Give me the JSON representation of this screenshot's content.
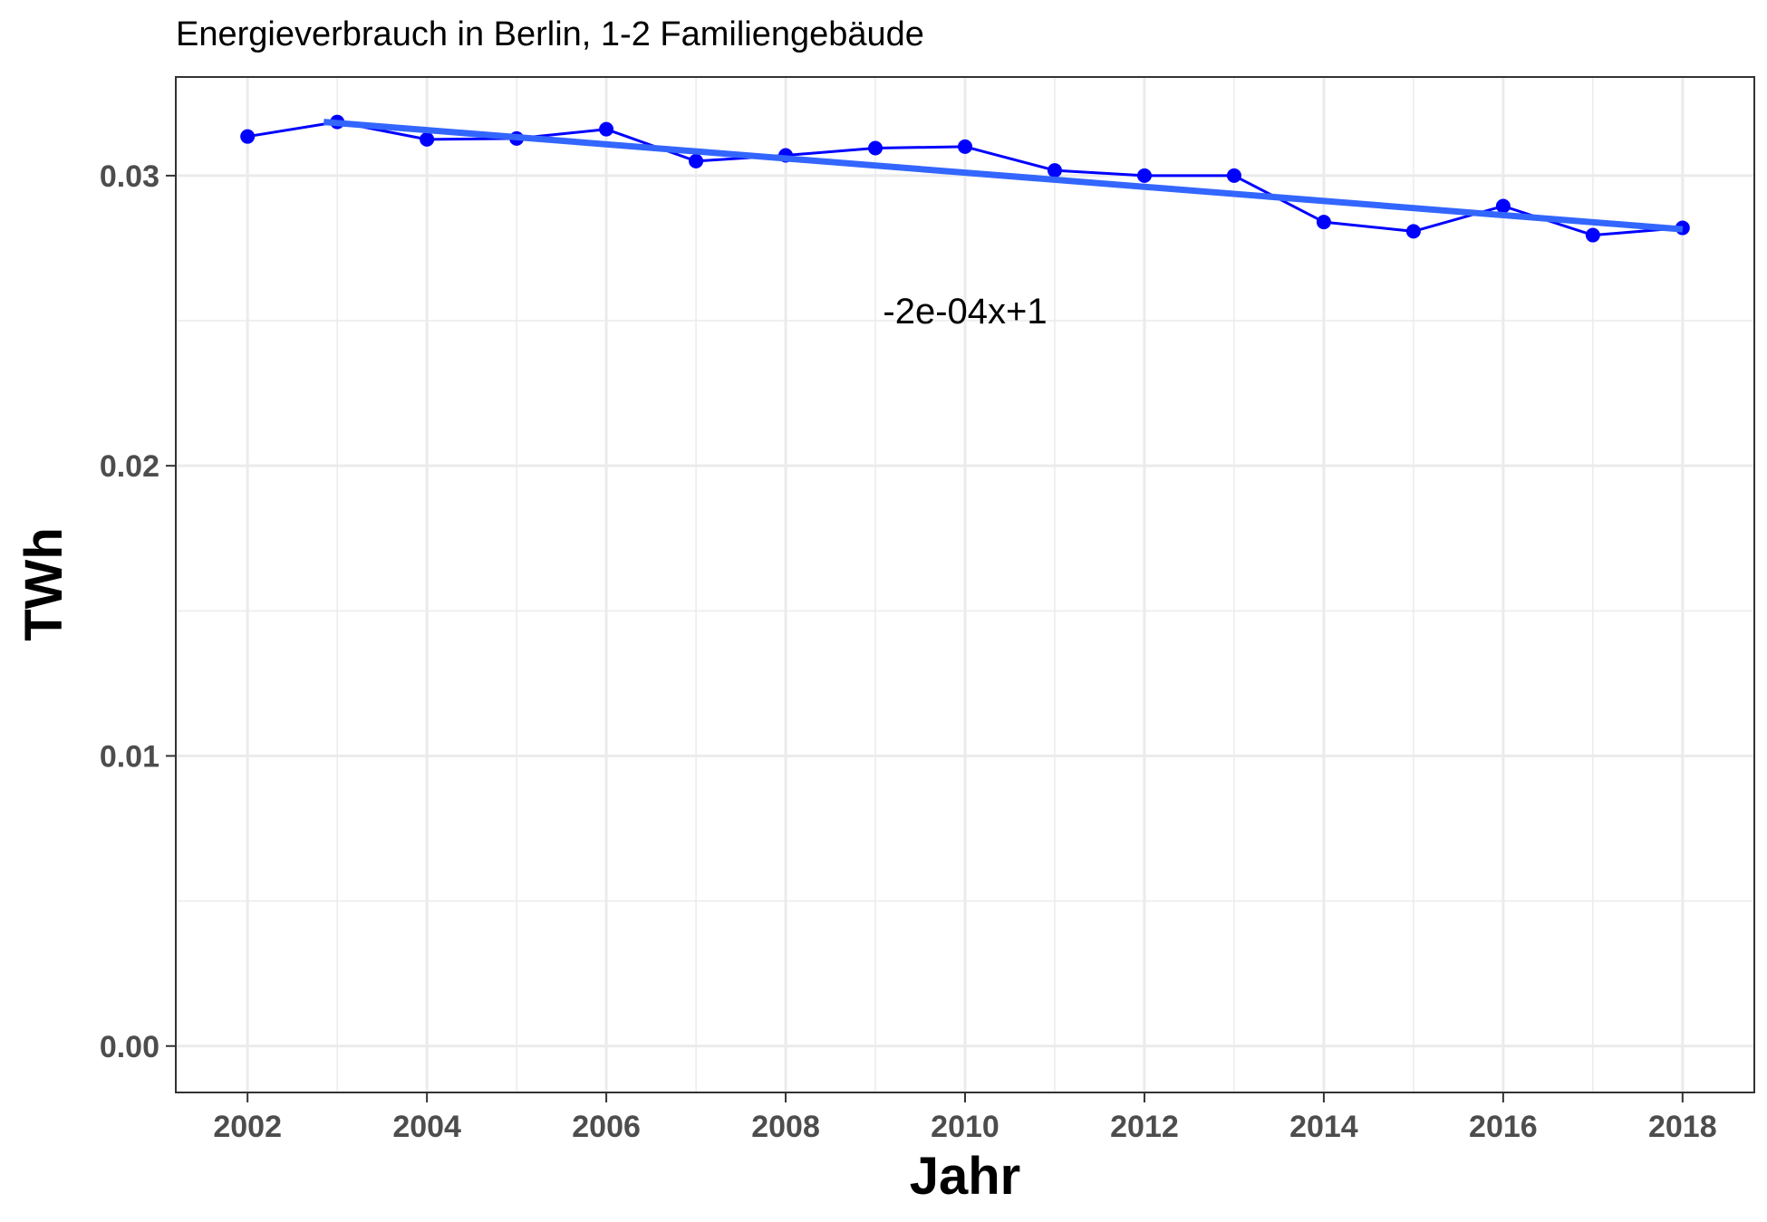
{
  "chart_data": {
    "type": "line",
    "title": "Energieverbrauch in Berlin, 1-2 Familiengebäude",
    "xlabel": "Jahr",
    "ylabel": "TWh",
    "xlim": [
      2001.2,
      2018.8
    ],
    "ylim": [
      -0.0016,
      0.0334
    ],
    "x_ticks": [
      2002,
      2004,
      2006,
      2008,
      2010,
      2012,
      2014,
      2016,
      2018
    ],
    "x_tick_labels": [
      "2002",
      "2004",
      "2006",
      "2008",
      "2010",
      "2012",
      "2014",
      "2016",
      "2018"
    ],
    "y_ticks": [
      0.0,
      0.01,
      0.02,
      0.03
    ],
    "y_tick_labels": [
      "0.00",
      "0.01",
      "0.02",
      "0.03"
    ],
    "grid": true,
    "series": [
      {
        "color": "#0000ff",
        "x": [
          2002,
          2003,
          2004,
          2005,
          2006,
          2007,
          2008,
          2009,
          2010,
          2011,
          2012,
          2013,
          2014,
          2015,
          2016,
          2017,
          2018
        ],
        "values": [
          0.03135,
          0.03185,
          0.03125,
          0.03128,
          0.0316,
          0.0305,
          0.0307,
          0.03095,
          0.031,
          0.03018,
          0.03,
          0.03,
          0.0284,
          0.02808,
          0.02895,
          0.02795,
          0.0282
        ]
      }
    ],
    "trend_line": {
      "color": "#3366ff",
      "x": [
        2002.85,
        2018
      ],
      "values": [
        0.03185,
        0.02815
      ]
    },
    "annotation": {
      "text": "-2e-04x+1",
      "x": 2010,
      "y": 0.0249
    }
  }
}
